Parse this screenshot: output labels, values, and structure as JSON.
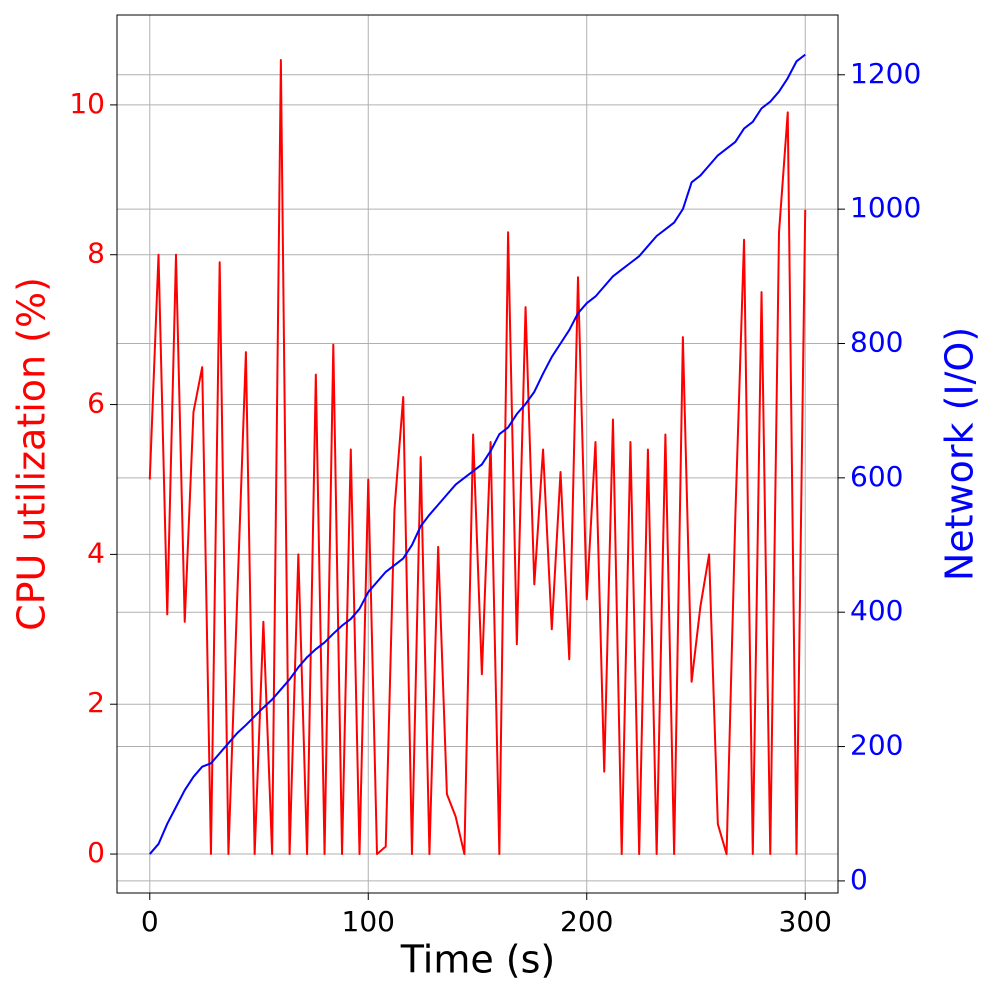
{
  "chart_data": {
    "type": "line",
    "xlabel": "Time (s)",
    "ylabel": "CPU utilization (%)",
    "y2label": "Network (I/O)",
    "ylabel_color": "#ff0000",
    "y2label_color": "#0000ff",
    "x": [
      0,
      4,
      8,
      12,
      16,
      20,
      24,
      28,
      32,
      36,
      40,
      44,
      48,
      52,
      56,
      60,
      64,
      68,
      72,
      76,
      80,
      84,
      88,
      92,
      96,
      100,
      104,
      108,
      112,
      116,
      120,
      124,
      128,
      132,
      136,
      140,
      144,
      148,
      152,
      156,
      160,
      164,
      168,
      172,
      176,
      180,
      184,
      188,
      192,
      196,
      200,
      204,
      208,
      212,
      216,
      220,
      224,
      228,
      232,
      236,
      240,
      244,
      248,
      252,
      256,
      260,
      264,
      268,
      272,
      276,
      280,
      284,
      288,
      292,
      296,
      300
    ],
    "series": [
      {
        "color": "#ff0000",
        "axis": "y",
        "values": [
          5.0,
          8.0,
          3.2,
          8.0,
          3.1,
          5.9,
          6.5,
          0,
          7.9,
          0,
          3.4,
          6.7,
          0,
          3.1,
          0,
          10.6,
          0,
          4.0,
          0,
          6.4,
          0,
          6.8,
          0,
          5.4,
          0,
          5.0,
          0,
          0.1,
          4.6,
          6.1,
          0,
          5.3,
          0,
          4.1,
          0.8,
          0.5,
          0,
          5.6,
          2.4,
          5.5,
          0,
          8.3,
          2.8,
          7.3,
          3.6,
          5.4,
          3.0,
          5.1,
          2.6,
          7.7,
          3.4,
          5.5,
          1.1,
          5.8,
          0,
          5.5,
          0,
          5.4,
          0,
          5.6,
          0,
          6.9,
          2.3,
          3.3,
          4.0,
          0.4,
          0,
          4.5,
          8.2,
          0,
          7.5,
          0,
          8.3,
          9.9,
          0,
          8.6
        ]
      },
      {
        "color": "#0000ff",
        "axis": "y2",
        "values": [
          40,
          55,
          85,
          110,
          135,
          155,
          170,
          175,
          190,
          205,
          220,
          232,
          245,
          258,
          270,
          285,
          300,
          318,
          333,
          345,
          355,
          368,
          380,
          390,
          405,
          430,
          445,
          460,
          470,
          480,
          500,
          528,
          545,
          560,
          575,
          590,
          600,
          610,
          620,
          640,
          665,
          675,
          695,
          710,
          728,
          755,
          780,
          800,
          820,
          845,
          860,
          870,
          885,
          900,
          910,
          920,
          930,
          945,
          960,
          970,
          980,
          1000,
          1040,
          1050,
          1065,
          1080,
          1090,
          1100,
          1120,
          1130,
          1150,
          1160,
          1175,
          1195,
          1220,
          1230
        ]
      }
    ],
    "xlim": [
      -15,
      315
    ],
    "xticks": [
      0,
      100,
      200,
      300
    ],
    "ylim": [
      -0.52,
      11.2
    ],
    "yticks": [
      0,
      2,
      4,
      6,
      8,
      10
    ],
    "y2lim": [
      -18,
      1289
    ],
    "y2ticks": [
      0,
      200,
      400,
      600,
      800,
      1000,
      1200
    ],
    "grid": true
  }
}
